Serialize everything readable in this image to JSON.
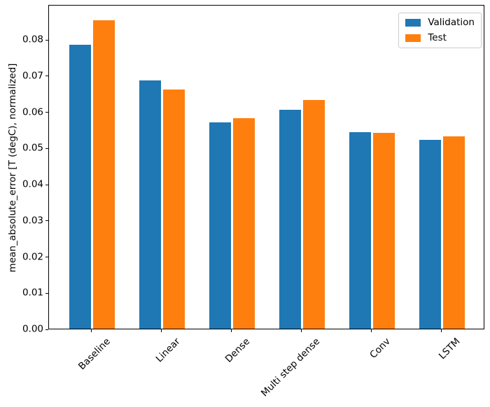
{
  "chart_data": {
    "type": "bar",
    "title": "",
    "xlabel": "",
    "ylabel": "mean_absolute_error [T (degC), normalized]",
    "categories": [
      "Baseline",
      "Linear",
      "Dense",
      "Multi step dense",
      "Conv",
      "LSTM"
    ],
    "series": [
      {
        "name": "Validation",
        "color": "#1f77b4",
        "values": [
          0.0785,
          0.0686,
          0.0571,
          0.0605,
          0.0544,
          0.0522
        ]
      },
      {
        "name": "Test",
        "color": "#ff7f0e",
        "values": [
          0.0852,
          0.0662,
          0.0582,
          0.0633,
          0.0541,
          0.0531
        ]
      }
    ],
    "ylim": [
      0,
      0.0897
    ],
    "yticks": [
      0.0,
      0.01,
      0.02,
      0.03,
      0.04,
      0.05,
      0.06,
      0.07,
      0.08
    ],
    "ytick_format_decimals": 2,
    "grid": false,
    "legend_position": "upper right",
    "bar_color_blue": "#1f77b4",
    "bar_color_orange": "#ff7f0e",
    "spine_color": "#000000"
  }
}
